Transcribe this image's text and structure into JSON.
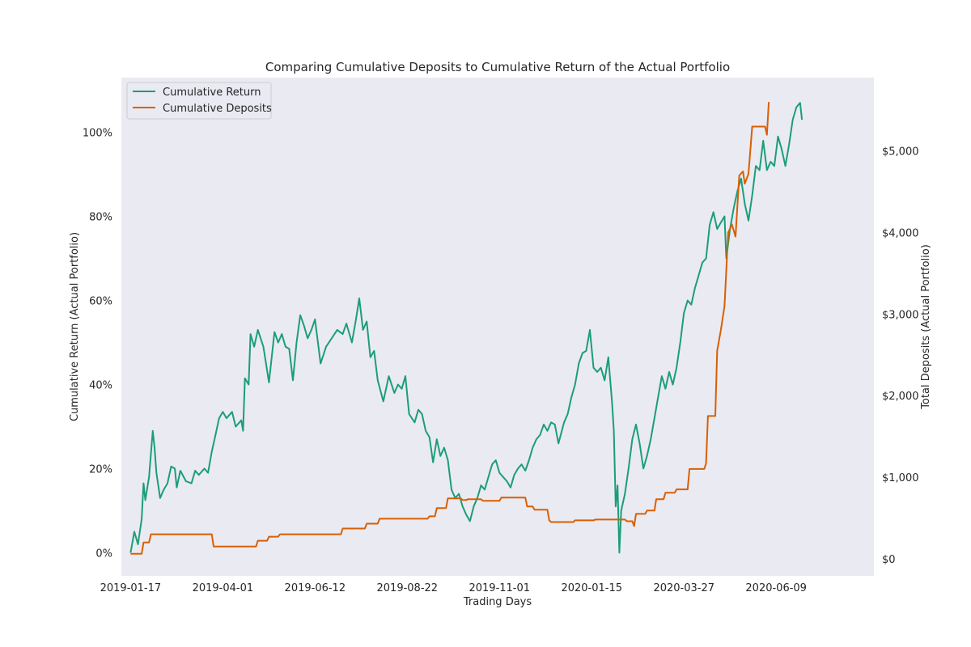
{
  "chart_data": {
    "type": "line",
    "title": "Comparing Cumulative Deposits to Cumulative Return of the Actual Portfolio",
    "xlabel": "Trading Days",
    "ylabel_left": "Cumulative Return (Actual Portfolio)",
    "ylabel_right": "Total Deposits (Actual Portfolio)",
    "x_tick_labels": [
      "2019-01-17",
      "2019-04-01",
      "2019-06-12",
      "2019-08-22",
      "2019-11-01",
      "2020-01-15",
      "2020-03-27",
      "2020-06-09"
    ],
    "x_tick_index": [
      0,
      50,
      100,
      150,
      200,
      250,
      300,
      350
    ],
    "x_range": [
      -5,
      403
    ],
    "y_left_ticks": [
      "0%",
      "20%",
      "40%",
      "60%",
      "80%",
      "100%"
    ],
    "y_left_tick_values": [
      0,
      20,
      40,
      60,
      80,
      100
    ],
    "y_left_range": [
      -5.5,
      113
    ],
    "y_right_ticks": [
      "$0",
      "$1,000",
      "$2,000",
      "$3,000",
      "$4,000",
      "$5,000"
    ],
    "y_right_tick_values": [
      0,
      1000,
      2000,
      3000,
      4000,
      5000
    ],
    "y_right_range": [
      -210,
      5900
    ],
    "grid": false,
    "legend_position": "upper-left",
    "background": "#eaeaf2",
    "series": [
      {
        "name": "Cumulative Return",
        "axis": "left",
        "color": "#1b9e77",
        "points": [
          [
            0,
            0
          ],
          [
            2,
            5
          ],
          [
            4,
            2
          ],
          [
            6,
            8
          ],
          [
            7,
            16.5
          ],
          [
            8,
            12.5
          ],
          [
            10,
            18
          ],
          [
            12,
            29
          ],
          [
            13,
            25
          ],
          [
            14,
            19
          ],
          [
            16,
            13
          ],
          [
            18,
            15
          ],
          [
            20,
            16.5
          ],
          [
            22,
            20.5
          ],
          [
            24,
            20
          ],
          [
            25,
            15.5
          ],
          [
            27,
            19.5
          ],
          [
            30,
            17
          ],
          [
            33,
            16.5
          ],
          [
            35,
            19.5
          ],
          [
            37,
            18.5
          ],
          [
            40,
            20
          ],
          [
            42,
            19
          ],
          [
            44,
            24
          ],
          [
            46,
            28
          ],
          [
            48,
            32
          ],
          [
            50,
            33.5
          ],
          [
            52,
            32
          ],
          [
            55,
            33.5
          ],
          [
            57,
            30
          ],
          [
            60,
            31.5
          ],
          [
            61,
            29
          ],
          [
            62,
            41.5
          ],
          [
            64,
            40
          ],
          [
            65,
            52
          ],
          [
            67,
            49
          ],
          [
            69,
            53
          ],
          [
            72,
            49
          ],
          [
            75,
            40.5
          ],
          [
            78,
            52.5
          ],
          [
            80,
            50
          ],
          [
            82,
            52
          ],
          [
            84,
            49
          ],
          [
            86,
            48.5
          ],
          [
            88,
            41
          ],
          [
            90,
            50
          ],
          [
            92,
            56.5
          ],
          [
            94,
            54
          ],
          [
            96,
            51
          ],
          [
            98,
            53
          ],
          [
            100,
            55.5
          ],
          [
            103,
            45
          ],
          [
            106,
            49
          ],
          [
            109,
            51
          ],
          [
            112,
            53
          ],
          [
            115,
            52
          ],
          [
            117,
            54.5
          ],
          [
            120,
            50
          ],
          [
            122,
            55
          ],
          [
            124,
            60.5
          ],
          [
            126,
            53
          ],
          [
            128,
            55
          ],
          [
            130,
            46.5
          ],
          [
            132,
            48
          ],
          [
            134,
            41
          ],
          [
            137,
            36
          ],
          [
            140,
            42
          ],
          [
            143,
            38
          ],
          [
            145,
            40
          ],
          [
            147,
            39
          ],
          [
            149,
            42
          ],
          [
            151,
            33
          ],
          [
            154,
            31
          ],
          [
            156,
            34
          ],
          [
            158,
            33
          ],
          [
            160,
            29
          ],
          [
            162,
            27.5
          ],
          [
            164,
            21.5
          ],
          [
            166,
            27
          ],
          [
            168,
            23
          ],
          [
            170,
            25
          ],
          [
            172,
            22
          ],
          [
            174,
            15
          ],
          [
            176,
            13
          ],
          [
            178,
            14
          ],
          [
            180,
            11
          ],
          [
            182,
            9
          ],
          [
            184,
            7.5
          ],
          [
            186,
            11
          ],
          [
            188,
            13
          ],
          [
            190,
            16
          ],
          [
            192,
            15
          ],
          [
            194,
            18
          ],
          [
            196,
            21
          ],
          [
            198,
            22
          ],
          [
            200,
            19
          ],
          [
            202,
            18
          ],
          [
            204,
            17
          ],
          [
            206,
            15.5
          ],
          [
            208,
            18.5
          ],
          [
            210,
            20
          ],
          [
            212,
            21
          ],
          [
            214,
            19.5
          ],
          [
            216,
            22
          ],
          [
            218,
            25
          ],
          [
            220,
            27
          ],
          [
            222,
            28
          ],
          [
            224,
            30.5
          ],
          [
            226,
            29
          ],
          [
            228,
            31
          ],
          [
            230,
            30.5
          ],
          [
            232,
            26
          ],
          [
            235,
            31
          ],
          [
            237,
            33
          ],
          [
            239,
            37
          ],
          [
            241,
            40
          ],
          [
            243,
            45
          ],
          [
            245,
            47.5
          ],
          [
            247,
            48
          ],
          [
            249,
            53
          ],
          [
            251,
            44
          ],
          [
            253,
            43
          ],
          [
            255,
            44
          ],
          [
            257,
            41
          ],
          [
            259,
            46.5
          ],
          [
            261,
            36
          ],
          [
            262,
            29
          ],
          [
            263,
            11
          ],
          [
            264,
            16
          ],
          [
            265,
            0
          ],
          [
            266,
            10
          ],
          [
            268,
            14
          ],
          [
            270,
            20
          ],
          [
            272,
            27
          ],
          [
            274,
            30.5
          ],
          [
            276,
            26
          ],
          [
            278,
            20
          ],
          [
            280,
            23
          ],
          [
            282,
            27
          ],
          [
            284,
            32
          ],
          [
            286,
            37
          ],
          [
            288,
            42
          ],
          [
            290,
            39
          ],
          [
            292,
            43
          ],
          [
            294,
            40
          ],
          [
            296,
            44
          ],
          [
            298,
            50
          ],
          [
            300,
            57
          ],
          [
            302,
            60
          ],
          [
            304,
            59
          ],
          [
            306,
            63
          ],
          [
            308,
            66
          ],
          [
            310,
            69
          ],
          [
            312,
            70
          ],
          [
            314,
            78
          ],
          [
            316,
            81
          ],
          [
            318,
            77
          ],
          [
            320,
            78.5
          ],
          [
            322,
            80
          ],
          [
            323,
            70
          ],
          [
            325,
            77
          ],
          [
            327,
            82
          ],
          [
            329,
            86
          ],
          [
            331,
            89
          ],
          [
            333,
            83
          ],
          [
            335,
            79
          ],
          [
            337,
            85
          ],
          [
            339,
            92
          ],
          [
            341,
            91
          ],
          [
            343,
            98
          ],
          [
            345,
            91
          ],
          [
            347,
            93
          ],
          [
            349,
            92
          ],
          [
            351,
            99
          ],
          [
            353,
            96
          ],
          [
            355,
            92
          ],
          [
            357,
            97
          ],
          [
            359,
            103
          ],
          [
            361,
            106
          ],
          [
            363,
            107
          ],
          [
            364,
            103
          ]
        ]
      },
      {
        "name": "Cumulative Deposits",
        "axis": "right",
        "color": "#d95f02",
        "points": [
          [
            0,
            60
          ],
          [
            6,
            60
          ],
          [
            7,
            200
          ],
          [
            10,
            200
          ],
          [
            11,
            300
          ],
          [
            15,
            300
          ],
          [
            44,
            300
          ],
          [
            45,
            150
          ],
          [
            68,
            150
          ],
          [
            69,
            220
          ],
          [
            74,
            220
          ],
          [
            75,
            270
          ],
          [
            80,
            270
          ],
          [
            81,
            300
          ],
          [
            114,
            300
          ],
          [
            115,
            370
          ],
          [
            127,
            370
          ],
          [
            128,
            430
          ],
          [
            134,
            430
          ],
          [
            135,
            490
          ],
          [
            161,
            490
          ],
          [
            162,
            520
          ],
          [
            165,
            520
          ],
          [
            166,
            620
          ],
          [
            171,
            620
          ],
          [
            172,
            740
          ],
          [
            179,
            740
          ],
          [
            180,
            720
          ],
          [
            182,
            720
          ],
          [
            183,
            730
          ],
          [
            190,
            730
          ],
          [
            191,
            710
          ],
          [
            200,
            710
          ],
          [
            201,
            750
          ],
          [
            214,
            750
          ],
          [
            215,
            640
          ],
          [
            218,
            640
          ],
          [
            219,
            600
          ],
          [
            226,
            600
          ],
          [
            227,
            470
          ],
          [
            228,
            450
          ],
          [
            240,
            450
          ],
          [
            241,
            470
          ],
          [
            251,
            470
          ],
          [
            252,
            480
          ],
          [
            268,
            480
          ],
          [
            269,
            460
          ],
          [
            272,
            460
          ],
          [
            273,
            400
          ],
          [
            274,
            550
          ],
          [
            279,
            550
          ],
          [
            280,
            590
          ],
          [
            284,
            590
          ],
          [
            285,
            730
          ],
          [
            289,
            730
          ],
          [
            290,
            810
          ],
          [
            295,
            810
          ],
          [
            296,
            850
          ],
          [
            302,
            850
          ],
          [
            303,
            1100
          ],
          [
            311,
            1100
          ],
          [
            312,
            1170
          ],
          [
            313,
            1750
          ],
          [
            317,
            1750
          ],
          [
            318,
            2550
          ],
          [
            320,
            2800
          ],
          [
            322,
            3100
          ],
          [
            324,
            4000
          ],
          [
            326,
            4100
          ],
          [
            328,
            3950
          ],
          [
            330,
            4700
          ],
          [
            332,
            4750
          ],
          [
            333,
            4600
          ],
          [
            335,
            4720
          ],
          [
            337,
            5300
          ],
          [
            344,
            5300
          ],
          [
            345,
            5200
          ],
          [
            346,
            5600
          ]
        ]
      }
    ]
  }
}
